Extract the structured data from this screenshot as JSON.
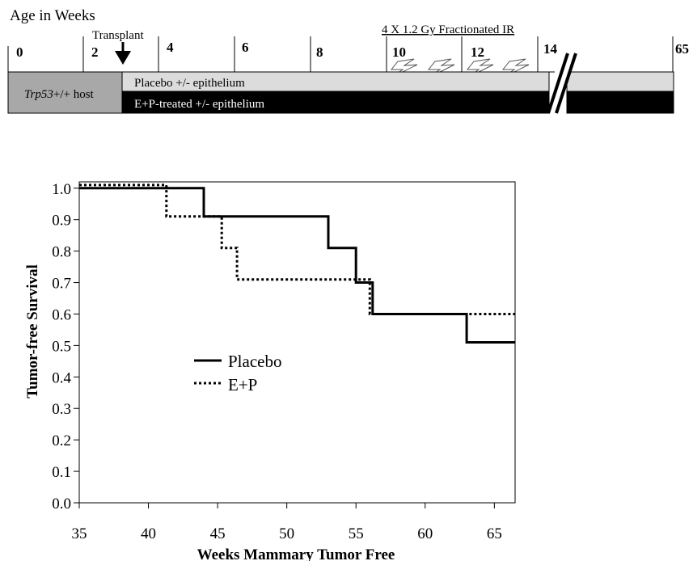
{
  "timeline": {
    "title": "Age in Weeks",
    "transplant_label": "Transplant",
    "ir_label": "4 X 1.2 Gy Fractionated IR",
    "ticks": [
      "0",
      "2",
      "4",
      "6",
      "8",
      "10",
      "12",
      "14",
      "65"
    ],
    "host_label_italic": "Trp53",
    "host_label_rest": "+/+ host",
    "placebo_bar_label": "Placebo +/- epithelium",
    "ep_bar_label": "E+P-treated +/- epithelium",
    "colors": {
      "host_fill": "#a8a8a8",
      "placebo_fill": "#dcdcdc",
      "ep_fill": "#000000"
    }
  },
  "chart_data": {
    "type": "line",
    "step": true,
    "xlabel": "Weeks Mammary Tumor Free",
    "ylabel": "Tumor-free Survival",
    "xlim": [
      35,
      66.5
    ],
    "ylim": [
      0,
      1.02
    ],
    "x_ticks": [
      35,
      40,
      45,
      50,
      55,
      60,
      65
    ],
    "y_ticks": [
      "0.0",
      "0.1",
      "0.2",
      "0.3",
      "0.4",
      "0.5",
      "0.6",
      "0.7",
      "0.8",
      "0.9",
      "1.0"
    ],
    "grid": false,
    "legend_position": "center-left",
    "series": [
      {
        "name": "Placebo",
        "style": "solid",
        "color": "#000000",
        "x": [
          35,
          44,
          44,
          53,
          53,
          55,
          55,
          56.2,
          56.2,
          63,
          63,
          66.5
        ],
        "y": [
          1.0,
          1.0,
          0.91,
          0.91,
          0.81,
          0.81,
          0.7,
          0.7,
          0.6,
          0.6,
          0.51,
          0.51
        ]
      },
      {
        "name": "E+P",
        "style": "dotted",
        "color": "#000000",
        "x": [
          35,
          41.3,
          41.3,
          45.3,
          45.3,
          46.4,
          46.4,
          56.0,
          56.0,
          66.5
        ],
        "y": [
          1.01,
          1.01,
          0.91,
          0.91,
          0.81,
          0.81,
          0.71,
          0.71,
          0.6,
          0.6
        ]
      }
    ]
  }
}
